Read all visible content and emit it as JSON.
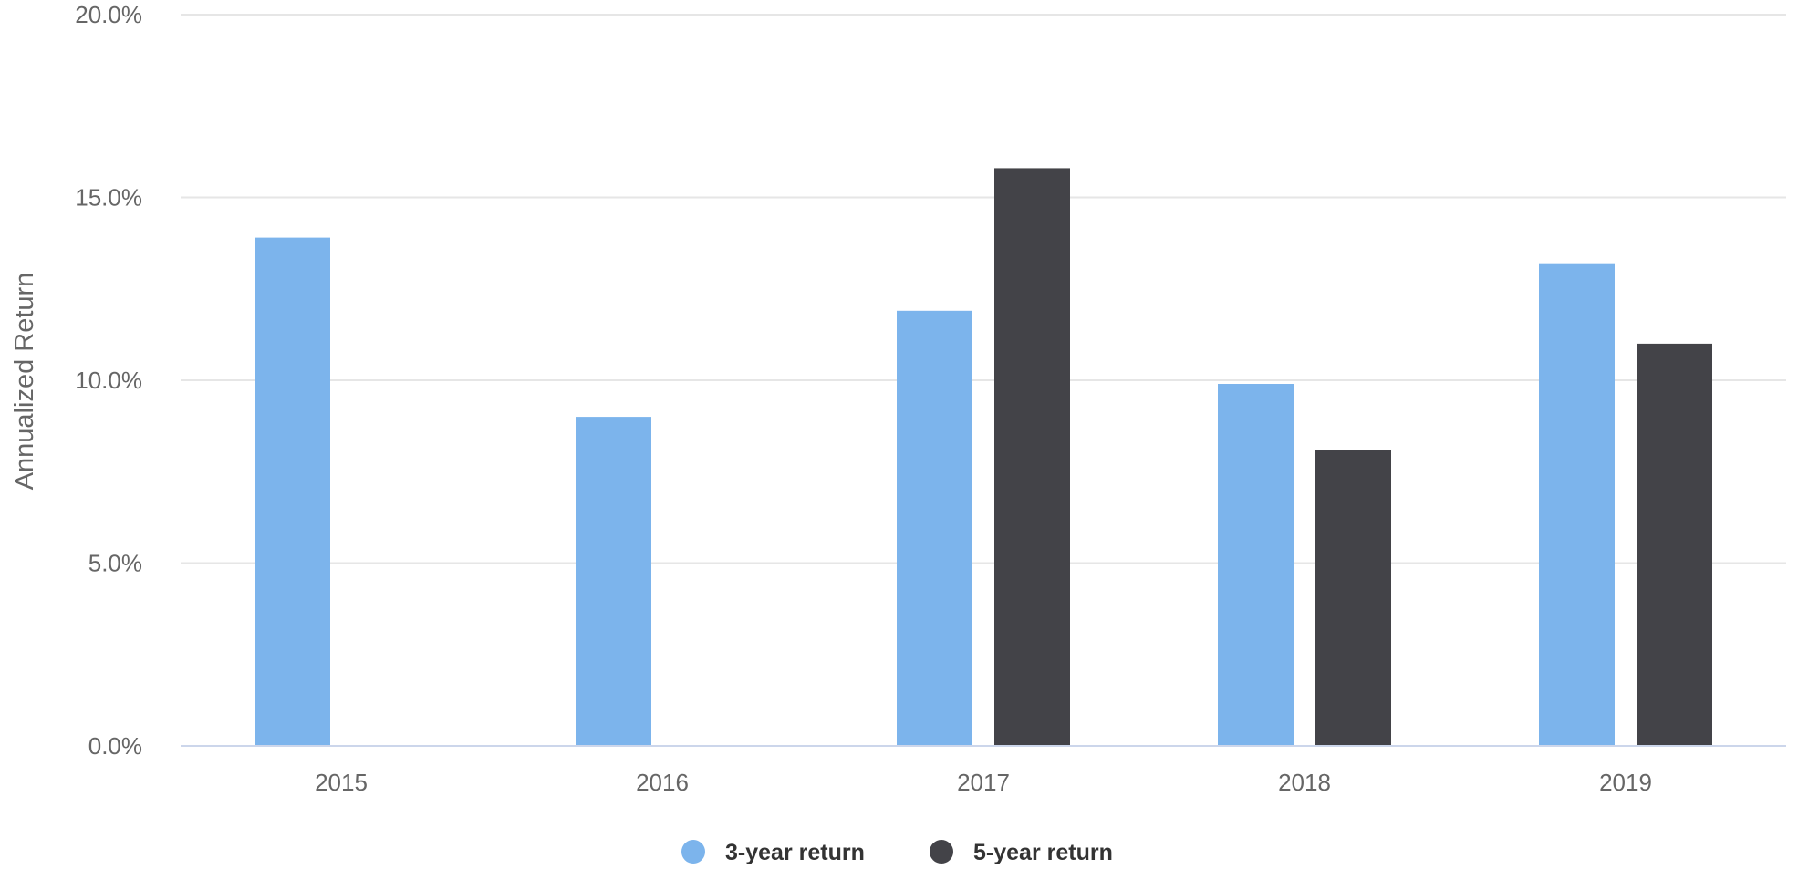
{
  "chart_data": {
    "type": "bar",
    "title": "",
    "xlabel": "",
    "ylabel": "Annualized Return",
    "categories": [
      "2015",
      "2016",
      "2017",
      "2018",
      "2019"
    ],
    "series": [
      {
        "name": "3-year return",
        "color": "#7cb4ec",
        "values": [
          13.9,
          9.0,
          11.9,
          9.9,
          13.2
        ]
      },
      {
        "name": "5-year return",
        "color": "#434348",
        "values": [
          null,
          null,
          15.8,
          8.1,
          11.0
        ]
      }
    ],
    "ylim": [
      0,
      20
    ],
    "yticks": [
      0,
      5,
      10,
      15,
      20
    ],
    "ytick_labels": [
      "0.0%",
      "5.0%",
      "10.0%",
      "15.0%",
      "20.0%"
    ],
    "grid": true,
    "legend_position": "bottom-center"
  }
}
